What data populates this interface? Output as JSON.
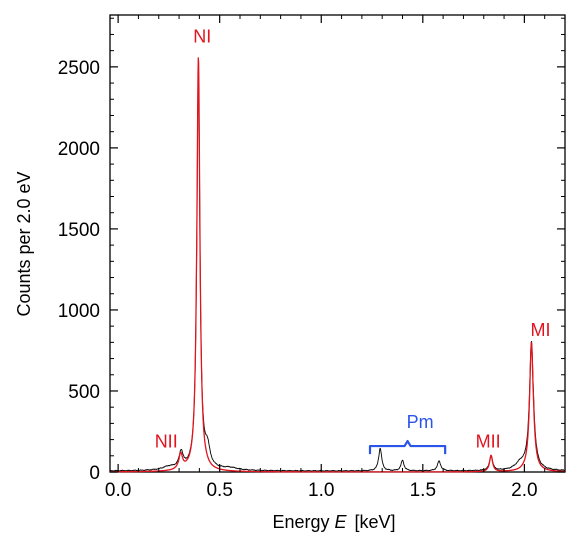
{
  "chart_data": {
    "type": "line",
    "title": "",
    "xlabel": "Energy E [keV]",
    "xlabel_prefix": "Energy ",
    "xlabel_var": "E",
    "xlabel_unit": "[keV]",
    "ylabel": "Counts per 2.0 eV",
    "xlim": [
      -0.04,
      2.2
    ],
    "ylim": [
      0,
      2820
    ],
    "xticks": [
      0.0,
      0.5,
      1.0,
      1.5,
      2.0
    ],
    "xtick_labels": [
      "0.0",
      "0.5",
      "1.0",
      "1.5",
      "2.0"
    ],
    "yticks": [
      0,
      500,
      1000,
      1500,
      2000,
      2500
    ],
    "ytick_labels": [
      "0",
      "500",
      "1000",
      "1500",
      "2000",
      "2500"
    ],
    "grid": false,
    "series": [
      {
        "color": "#000000",
        "baseline": 6,
        "peaks": [
          {
            "x": 0.31,
            "height": 100,
            "width": 0.012
          },
          {
            "x": 0.395,
            "height": 2480,
            "width": 0.009
          },
          {
            "x": 0.44,
            "height": 110,
            "width": 0.015
          },
          {
            "x": 0.25,
            "height": 20,
            "width": 0.04
          },
          {
            "x": 0.55,
            "height": 15,
            "width": 0.05
          },
          {
            "x": 1.29,
            "height": 140,
            "width": 0.009
          },
          {
            "x": 1.4,
            "height": 65,
            "width": 0.009
          },
          {
            "x": 1.58,
            "height": 60,
            "width": 0.01
          },
          {
            "x": 1.836,
            "height": 95,
            "width": 0.009
          },
          {
            "x": 2.035,
            "height": 790,
            "width": 0.012
          },
          {
            "x": 1.98,
            "height": 40,
            "width": 0.03
          }
        ]
      },
      {
        "color": "#e0141e",
        "baseline": 0,
        "peaks": [
          {
            "x": 0.308,
            "height": 95,
            "width": 0.011
          },
          {
            "x": 0.395,
            "height": 2560,
            "width": 0.009
          },
          {
            "x": 1.836,
            "height": 100,
            "width": 0.009
          },
          {
            "x": 2.035,
            "height": 800,
            "width": 0.011
          }
        ]
      }
    ],
    "annotations": [
      {
        "text": "NI",
        "x": 0.37,
        "y": 2650,
        "color": "#e0141e"
      },
      {
        "text": "NII",
        "x": 0.18,
        "y": 150,
        "color": "#e0141e"
      },
      {
        "text": "MII",
        "x": 1.76,
        "y": 150,
        "color": "#e0141e"
      },
      {
        "text": "MI",
        "x": 2.03,
        "y": 840,
        "color": "#e0141e"
      },
      {
        "text": "Pm",
        "x": 1.42,
        "y": 270,
        "color": "#2b55e8"
      }
    ],
    "bracket": {
      "x_start": 1.24,
      "x_end": 1.61,
      "y": 160,
      "color": "#2b55e8"
    }
  }
}
